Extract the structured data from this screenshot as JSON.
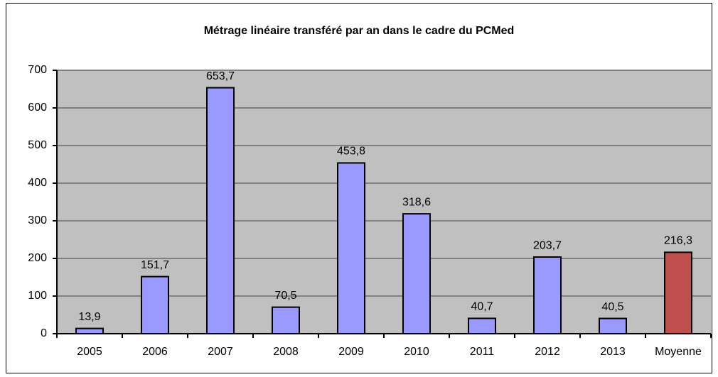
{
  "chart_data": {
    "type": "bar",
    "title": "Métrage linéaire transféré par an dans le cadre du PCMed",
    "categories": [
      "2005",
      "2006",
      "2007",
      "2008",
      "2009",
      "2010",
      "2011",
      "2012",
      "2013",
      "Moyenne"
    ],
    "values": [
      13.9,
      151.7,
      653.7,
      70.5,
      453.8,
      318.6,
      40.7,
      203.7,
      40.5,
      216.3
    ],
    "value_labels": [
      "13,9",
      "151,7",
      "653,7",
      "70,5",
      "453,8",
      "318,6",
      "40,7",
      "203,7",
      "40,5",
      "216,3"
    ],
    "colors": [
      "#9999ff",
      "#9999ff",
      "#9999ff",
      "#9999ff",
      "#9999ff",
      "#9999ff",
      "#9999ff",
      "#9999ff",
      "#9999ff",
      "#c0504d"
    ],
    "ylim": [
      0,
      700
    ],
    "yticks": [
      0,
      100,
      200,
      300,
      400,
      500,
      600,
      700
    ],
    "grid": true
  }
}
